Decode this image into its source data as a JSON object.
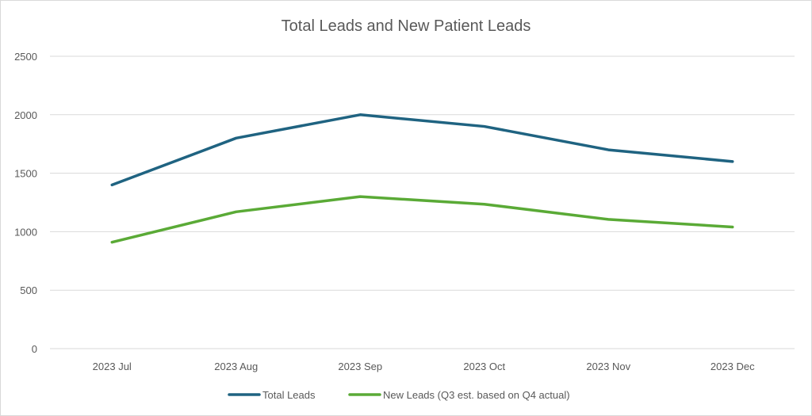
{
  "chart_data": {
    "type": "line",
    "title": "Total Leads and New Patient Leads",
    "categories": [
      "2023 Jul",
      "2023 Aug",
      "2023 Sep",
      "2023 Oct",
      "2023 Nov",
      "2023 Dec"
    ],
    "series": [
      {
        "name": "Total Leads",
        "color": "#1f6381",
        "values": [
          1400,
          1800,
          2000,
          1900,
          1700,
          1600
        ]
      },
      {
        "name": "New Leads (Q3 est. based on Q4 actual)",
        "color": "#5aaa36",
        "values": [
          910,
          1170,
          1300,
          1235,
          1105,
          1040
        ]
      }
    ],
    "ylim": [
      0,
      2500
    ],
    "yticks": [
      "0",
      "500",
      "1000",
      "1500",
      "2000",
      "2500"
    ],
    "grid": true,
    "legend": "bottom"
  }
}
